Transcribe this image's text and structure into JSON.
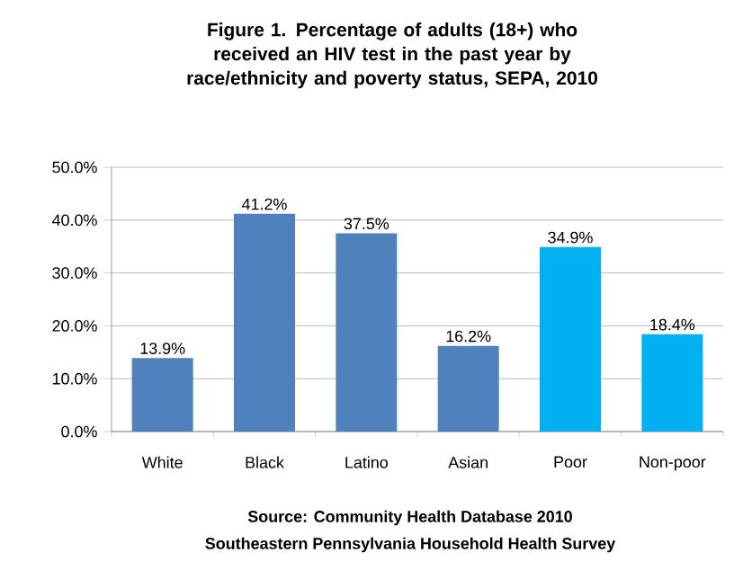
{
  "chart_data": {
    "type": "bar",
    "title": "Figure 1. Percentage of adults (18+) who received an HIV test in the past year by race/ethnicity and poverty status, SEPA, 2010",
    "categories": [
      "White",
      "Black",
      "Latino",
      "Asian",
      "Poor",
      "Non-poor"
    ],
    "values": [
      13.9,
      41.2,
      37.5,
      16.2,
      34.9,
      18.4
    ],
    "value_labels": [
      "13.9%",
      "41.2%",
      "37.5%",
      "16.2%",
      "34.9%",
      "18.4%"
    ],
    "colors": [
      "#4f81bd",
      "#4f81bd",
      "#4f81bd",
      "#4f81bd",
      "#00b0f0",
      "#00b0f0"
    ],
    "ylim": [
      0,
      50
    ],
    "yticks": [
      {
        "value": 0,
        "label": "0.0%"
      },
      {
        "value": 10,
        "label": "10.0%"
      },
      {
        "value": 20,
        "label": "20.0%"
      },
      {
        "value": 30,
        "label": "30.0%"
      },
      {
        "value": 40,
        "label": "40.0%"
      },
      {
        "value": 50,
        "label": "50.0%"
      }
    ],
    "grid": "y",
    "annotations": [
      "Source: Community Health Database 2010",
      "Southeastern Pennsylvania Household Health Survey"
    ]
  }
}
